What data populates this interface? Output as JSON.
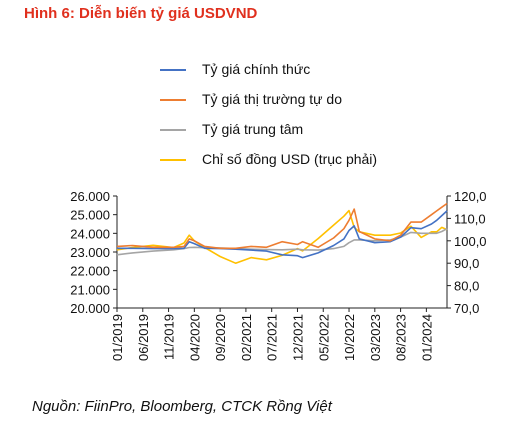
{
  "figure": {
    "title": "Hình 6: Diễn biến tỷ giá USDVND",
    "source": "Nguồn: FiinPro, Bloomberg, CTCK Rồng Việt"
  },
  "chart_data": {
    "type": "line",
    "grid": false,
    "legend_position": "top",
    "x_tick_labels": [
      "01/2019",
      "06/2019",
      "11/2019",
      "04/2020",
      "09/2020",
      "02/2021",
      "07/2021",
      "12/2021",
      "05/2022",
      "10/2022",
      "03/2023",
      "08/2023",
      "01/2024"
    ],
    "x_range": [
      "2019-01",
      "2024-05"
    ],
    "y_left": {
      "ticks": [
        "20.000",
        "21.000",
        "22.000",
        "23.000",
        "24.000",
        "25.000",
        "26.000"
      ],
      "range": [
        20000,
        26000
      ]
    },
    "y_right": {
      "ticks": [
        "70,0",
        "80,0",
        "90,0",
        "100,0",
        "110,0",
        "120,0"
      ],
      "range": [
        70,
        120
      ]
    },
    "series": [
      {
        "name": "Tỷ giá chính thức",
        "color": "#4472c4",
        "axis": "left",
        "points": [
          [
            "2019-01",
            23200
          ],
          [
            "2019-04",
            23200
          ],
          [
            "2019-08",
            23180
          ],
          [
            "2019-12",
            23180
          ],
          [
            "2020-02",
            23200
          ],
          [
            "2020-03",
            23550
          ],
          [
            "2020-04",
            23450
          ],
          [
            "2020-06",
            23200
          ],
          [
            "2020-09",
            23180
          ],
          [
            "2020-12",
            23150
          ],
          [
            "2021-03",
            23100
          ],
          [
            "2021-06",
            23050
          ],
          [
            "2021-09",
            22850
          ],
          [
            "2021-12",
            22800
          ],
          [
            "2022-01",
            22700
          ],
          [
            "2022-04",
            22950
          ],
          [
            "2022-07",
            23350
          ],
          [
            "2022-09",
            23700
          ],
          [
            "2022-10",
            24150
          ],
          [
            "2022-11",
            24400
          ],
          [
            "2022-12",
            23700
          ],
          [
            "2023-03",
            23500
          ],
          [
            "2023-06",
            23550
          ],
          [
            "2023-08",
            23800
          ],
          [
            "2023-10",
            24300
          ],
          [
            "2023-12",
            24250
          ],
          [
            "2024-02",
            24500
          ],
          [
            "2024-03",
            24700
          ],
          [
            "2024-04",
            24950
          ],
          [
            "2024-05",
            25200
          ]
        ]
      },
      {
        "name": "Tỷ giá thị trường tự do",
        "color": "#ed7d31",
        "axis": "left",
        "points": [
          [
            "2019-01",
            23300
          ],
          [
            "2019-04",
            23350
          ],
          [
            "2019-08",
            23250
          ],
          [
            "2019-12",
            23250
          ],
          [
            "2020-02",
            23300
          ],
          [
            "2020-03",
            23700
          ],
          [
            "2020-04",
            23600
          ],
          [
            "2020-06",
            23300
          ],
          [
            "2020-09",
            23200
          ],
          [
            "2020-12",
            23200
          ],
          [
            "2021-03",
            23300
          ],
          [
            "2021-06",
            23250
          ],
          [
            "2021-09",
            23550
          ],
          [
            "2021-12",
            23400
          ],
          [
            "2022-01",
            23550
          ],
          [
            "2022-04",
            23250
          ],
          [
            "2022-07",
            23750
          ],
          [
            "2022-09",
            24250
          ],
          [
            "2022-10",
            24700
          ],
          [
            "2022-11",
            25300
          ],
          [
            "2022-12",
            24100
          ],
          [
            "2023-03",
            23700
          ],
          [
            "2023-06",
            23600
          ],
          [
            "2023-08",
            23900
          ],
          [
            "2023-10",
            24600
          ],
          [
            "2023-12",
            24600
          ],
          [
            "2024-02",
            25000
          ],
          [
            "2024-03",
            25200
          ],
          [
            "2024-04",
            25400
          ],
          [
            "2024-05",
            25600
          ]
        ]
      },
      {
        "name": "Tỷ giá trung tâm",
        "color": "#a5a5a5",
        "axis": "left",
        "points": [
          [
            "2019-01",
            22850
          ],
          [
            "2019-04",
            22950
          ],
          [
            "2019-08",
            23050
          ],
          [
            "2019-12",
            23120
          ],
          [
            "2020-02",
            23180
          ],
          [
            "2020-03",
            23240
          ],
          [
            "2020-04",
            23250
          ],
          [
            "2020-06",
            23230
          ],
          [
            "2020-09",
            23220
          ],
          [
            "2020-12",
            23180
          ],
          [
            "2021-03",
            23150
          ],
          [
            "2021-06",
            23130
          ],
          [
            "2021-09",
            23120
          ],
          [
            "2021-12",
            23150
          ],
          [
            "2022-01",
            23120
          ],
          [
            "2022-04",
            23100
          ],
          [
            "2022-07",
            23180
          ],
          [
            "2022-09",
            23300
          ],
          [
            "2022-10",
            23500
          ],
          [
            "2022-11",
            23650
          ],
          [
            "2022-12",
            23650
          ],
          [
            "2023-03",
            23600
          ],
          [
            "2023-06",
            23650
          ],
          [
            "2023-08",
            23800
          ],
          [
            "2023-10",
            24050
          ],
          [
            "2023-12",
            24000
          ],
          [
            "2024-02",
            24000
          ],
          [
            "2024-03",
            24000
          ],
          [
            "2024-04",
            24100
          ],
          [
            "2024-05",
            24250
          ]
        ]
      },
      {
        "name": "Chỉ số đồng USD (trục phải)",
        "color": "#ffc000",
        "axis": "right",
        "points": [
          [
            "2019-01",
            96.0
          ],
          [
            "2019-04",
            97.0
          ],
          [
            "2019-08",
            98.0
          ],
          [
            "2019-12",
            97.0
          ],
          [
            "2020-02",
            99.0
          ],
          [
            "2020-03",
            102.5
          ],
          [
            "2020-04",
            100.0
          ],
          [
            "2020-06",
            97.0
          ],
          [
            "2020-09",
            93.0
          ],
          [
            "2020-12",
            90.0
          ],
          [
            "2021-03",
            92.5
          ],
          [
            "2021-06",
            91.5
          ],
          [
            "2021-09",
            93.5
          ],
          [
            "2021-12",
            96.5
          ],
          [
            "2022-01",
            95.5
          ],
          [
            "2022-04",
            101.0
          ],
          [
            "2022-07",
            107.0
          ],
          [
            "2022-09",
            111.0
          ],
          [
            "2022-10",
            113.5
          ],
          [
            "2022-11",
            106.0
          ],
          [
            "2022-12",
            104.0
          ],
          [
            "2023-03",
            102.5
          ],
          [
            "2023-06",
            102.5
          ],
          [
            "2023-08",
            103.5
          ],
          [
            "2023-10",
            106.5
          ],
          [
            "2023-12",
            101.5
          ],
          [
            "2024-02",
            104.0
          ],
          [
            "2024-03",
            104.0
          ],
          [
            "2024-04",
            106.0
          ],
          [
            "2024-05",
            105.0
          ]
        ]
      }
    ]
  }
}
